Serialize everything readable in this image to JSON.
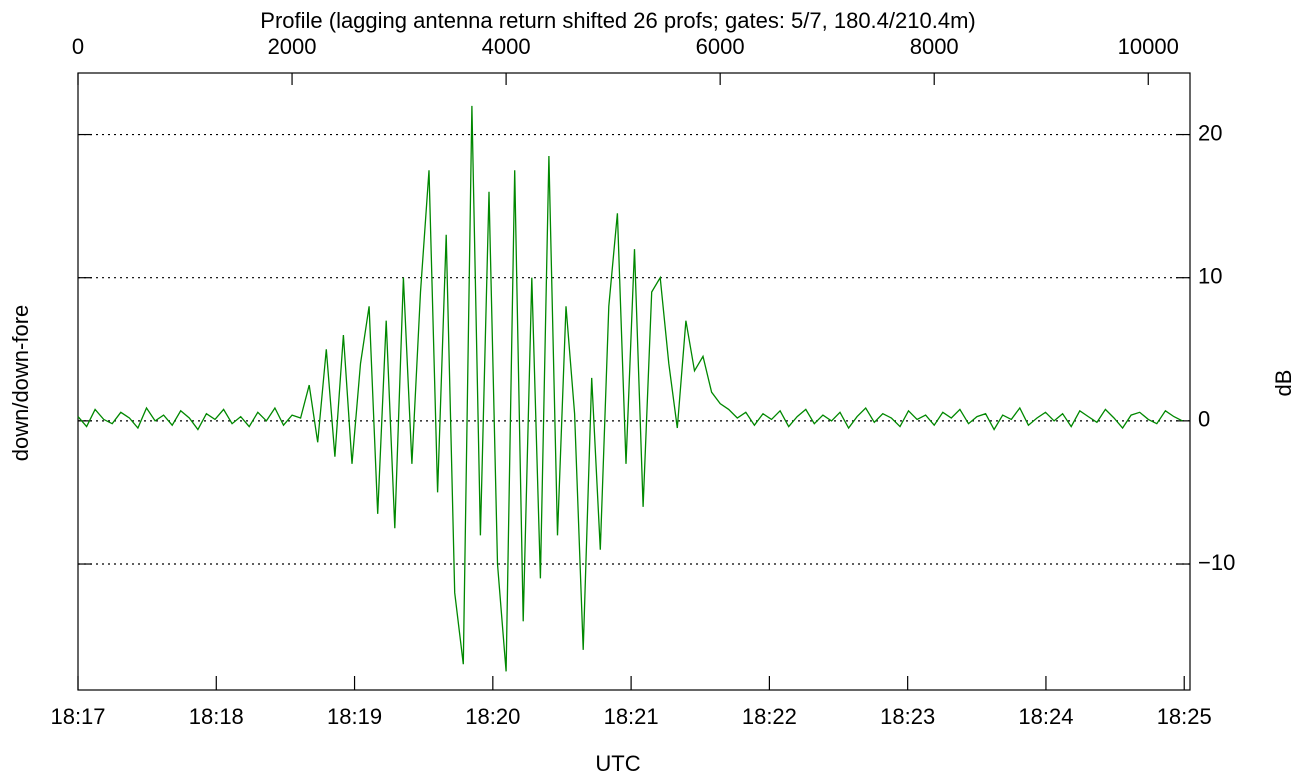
{
  "chart_data": {
    "type": "line",
    "title": "Profile (lagging antenna return shifted 26 profs; gates: 5/7, 180.4/210.4m)",
    "xlabel": "UTC",
    "ylabel": "down/down-fore",
    "y2label": "dB",
    "x": [
      0,
      80,
      160,
      240,
      320,
      400,
      480,
      560,
      640,
      720,
      800,
      880,
      960,
      1040,
      1120,
      1200,
      1280,
      1360,
      1440,
      1520,
      1600,
      1680,
      1760,
      1840,
      1920,
      2000,
      2080,
      2160,
      2240,
      2320,
      2400,
      2480,
      2560,
      2640,
      2720,
      2800,
      2880,
      2960,
      3040,
      3120,
      3200,
      3280,
      3360,
      3440,
      3520,
      3600,
      3680,
      3760,
      3840,
      3920,
      4000,
      4080,
      4160,
      4240,
      4320,
      4400,
      4480,
      4560,
      4640,
      4720,
      4800,
      4880,
      4960,
      5040,
      5120,
      5200,
      5280,
      5360,
      5440,
      5520,
      5600,
      5680,
      5760,
      5840,
      5920,
      6000,
      6080,
      6160,
      6240,
      6320,
      6400,
      6480,
      6560,
      6640,
      6720,
      6800,
      6880,
      6960,
      7040,
      7120,
      7200,
      7280,
      7360,
      7440,
      7520,
      7600,
      7680,
      7760,
      7840,
      7920,
      8000,
      8080,
      8160,
      8240,
      8320,
      8400,
      8480,
      8560,
      8640,
      8720,
      8800,
      8880,
      8960,
      9040,
      9120,
      9200,
      9280,
      9360,
      9440,
      9520,
      9600,
      9680,
      9760,
      9840,
      9920,
      10000,
      10080,
      10160,
      10240,
      10320
    ],
    "series": [
      {
        "name": "down/down-fore",
        "color": "#008800",
        "values": [
          0.3,
          -0.4,
          0.8,
          0.1,
          -0.2,
          0.6,
          0.2,
          -0.5,
          0.9,
          0.0,
          0.4,
          -0.3,
          0.7,
          0.2,
          -0.6,
          0.5,
          0.1,
          0.8,
          -0.2,
          0.3,
          -0.4,
          0.6,
          0.0,
          0.9,
          -0.3,
          0.4,
          0.2,
          2.5,
          -1.5,
          5,
          -2.5,
          6,
          -3,
          4,
          8,
          -6.5,
          7,
          -7.5,
          10,
          -3,
          9,
          17.5,
          -5,
          13,
          -12,
          -17,
          22,
          -8,
          16,
          -10,
          -17.5,
          17.5,
          -14,
          10,
          -11,
          18.5,
          -8,
          8,
          0.5,
          -16,
          3,
          -9,
          8,
          14.5,
          -3,
          12,
          -6,
          9,
          10,
          4,
          -0.5,
          7,
          3.5,
          4.5,
          2,
          1.2,
          0.8,
          0.2,
          0.6,
          -0.3,
          0.5,
          0.1,
          0.7,
          -0.4,
          0.3,
          0.8,
          -0.2,
          0.4,
          0.0,
          0.6,
          -0.5,
          0.3,
          0.9,
          -0.1,
          0.5,
          0.2,
          -0.4,
          0.7,
          0.1,
          0.4,
          -0.3,
          0.6,
          0.2,
          0.8,
          -0.2,
          0.3,
          0.5,
          -0.6,
          0.4,
          0.1,
          0.9,
          -0.3,
          0.2,
          0.6,
          0.0,
          0.5,
          -0.4,
          0.7,
          0.3,
          -0.1,
          0.8,
          0.2,
          -0.5,
          0.4,
          0.6,
          0.1,
          -0.2,
          0.7,
          0.3,
          0.0
        ]
      }
    ],
    "xlim": [
      0,
      10390
    ],
    "xticks": [
      0,
      2000,
      4000,
      6000,
      8000,
      10000
    ],
    "time_ticks": [
      {
        "value": 0,
        "label": "18:17"
      },
      {
        "value": 1292,
        "label": "18:18"
      },
      {
        "value": 2584,
        "label": "18:19"
      },
      {
        "value": 3876,
        "label": "18:20"
      },
      {
        "value": 5168,
        "label": "18:21"
      },
      {
        "value": 6460,
        "label": "18:22"
      },
      {
        "value": 7752,
        "label": "18:23"
      },
      {
        "value": 9044,
        "label": "18:24"
      },
      {
        "value": 10336,
        "label": "18:25"
      }
    ],
    "ylim": [
      -18.8,
      24.3
    ],
    "yticks": [
      -10,
      0,
      10,
      20
    ],
    "y_tick_labels": [
      {
        "value": -10,
        "label": "−10"
      },
      {
        "value": 0,
        "label": "0"
      },
      {
        "value": 10,
        "label": "10"
      },
      {
        "value": 20,
        "label": "20"
      }
    ],
    "grid": true
  }
}
